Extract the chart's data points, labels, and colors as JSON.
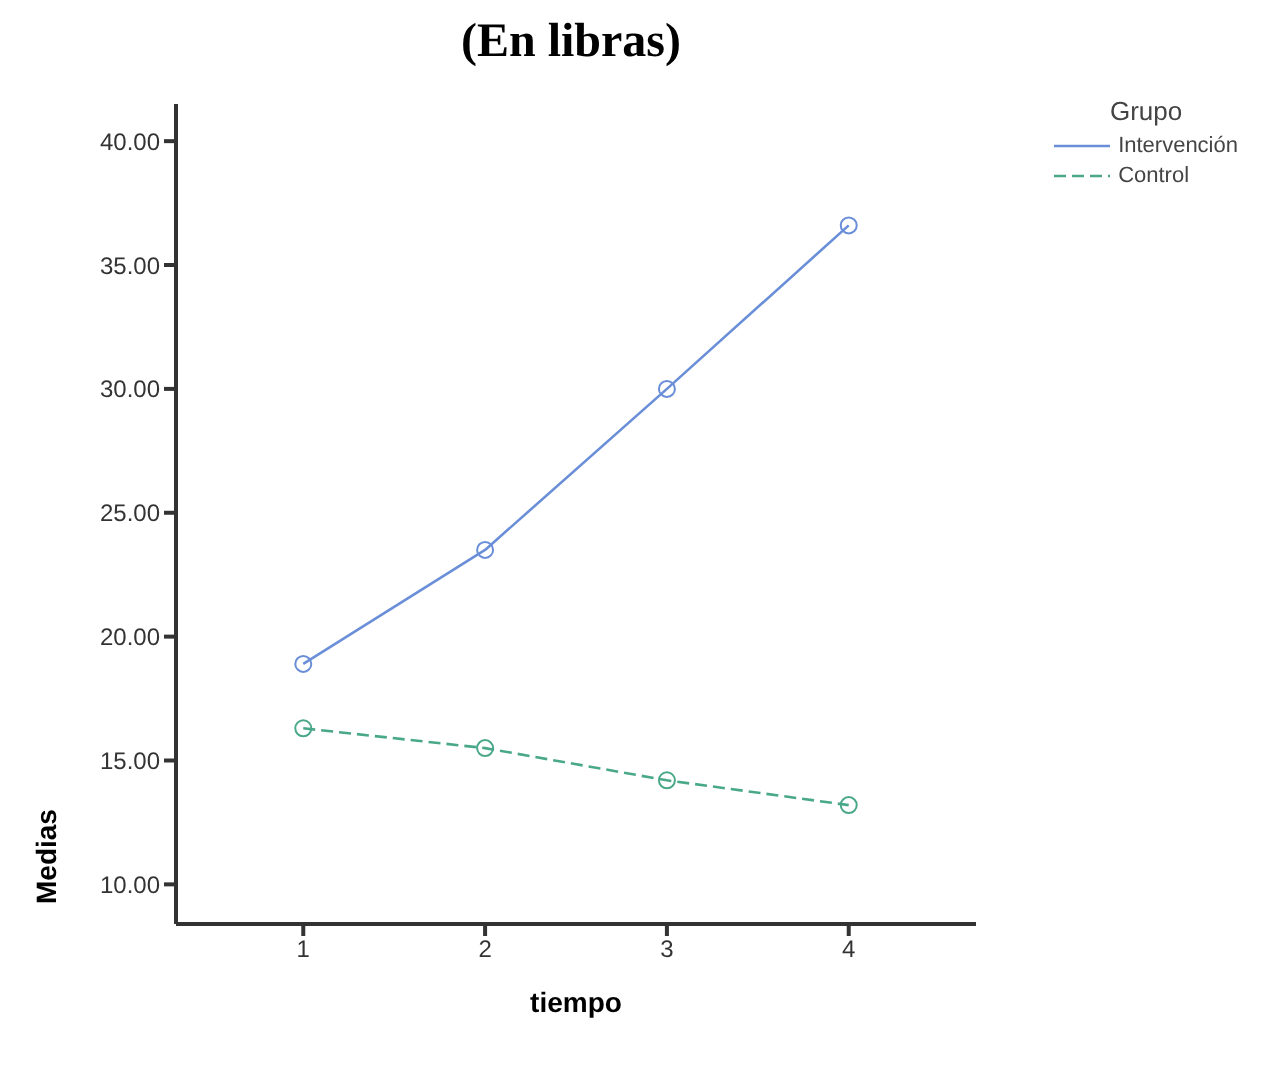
{
  "chart_data": {
    "type": "line",
    "title": "(En libras)",
    "xlabel": "tiempo",
    "ylabel": "Medias",
    "legend_title": "Grupo",
    "legend": "top right",
    "marker": "circle",
    "grid": false,
    "x": [
      1,
      2,
      3,
      4
    ],
    "xlim": [
      0.3,
      4.7
    ],
    "xticks": [
      1,
      2,
      3,
      4
    ],
    "ylim": [
      8.4,
      41.5
    ],
    "yticks": [
      {
        "value": 10,
        "label": "10.00"
      },
      {
        "value": 15,
        "label": "15.00"
      },
      {
        "value": 20,
        "label": "20.00"
      },
      {
        "value": 25,
        "label": "25.00"
      },
      {
        "value": 30,
        "label": "30.00"
      },
      {
        "value": 35,
        "label": "35.00"
      },
      {
        "value": 40,
        "label": "40.00"
      }
    ],
    "series": [
      {
        "name": "Intervención",
        "color": "#6a8fd8",
        "line_style": "solid",
        "values": [
          18.9,
          23.5,
          30.0,
          36.6
        ]
      },
      {
        "name": "Control",
        "color": "#4aa88a",
        "line_style": "dashed",
        "values": [
          16.3,
          15.5,
          14.2,
          13.2
        ]
      }
    ]
  }
}
